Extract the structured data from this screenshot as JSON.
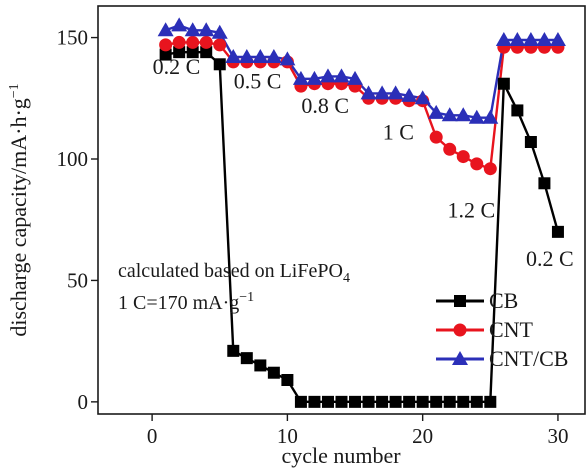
{
  "chart_data": {
    "type": "scatter",
    "xlabel": "cycle number",
    "ylabel": "discharge capacity/mA·h·g",
    "ylabel_sup": "−1",
    "xlim": [
      -4,
      32
    ],
    "ylim": [
      -5,
      163
    ],
    "xticks": [
      0,
      10,
      20,
      30
    ],
    "yticks": [
      0,
      50,
      100,
      150
    ],
    "grid": false,
    "legend_position": "bottom-right",
    "series": [
      {
        "name": "CB",
        "color": "#000000",
        "marker": "square",
        "x": [
          1,
          2,
          3,
          4,
          5,
          6,
          7,
          8,
          9,
          10,
          11,
          12,
          13,
          14,
          15,
          16,
          17,
          18,
          19,
          20,
          21,
          22,
          23,
          24,
          25,
          26,
          27,
          28,
          29,
          30
        ],
        "y": [
          143,
          144,
          144,
          144,
          139,
          21,
          18,
          15,
          12,
          9,
          0,
          0,
          0,
          0,
          0,
          0,
          0,
          0,
          0,
          0,
          0,
          0,
          0,
          0,
          0,
          131,
          120,
          107,
          90,
          70
        ]
      },
      {
        "name": "CNT",
        "color": "#e8141e",
        "marker": "circle",
        "x": [
          1,
          2,
          3,
          4,
          5,
          6,
          7,
          8,
          9,
          10,
          11,
          12,
          13,
          14,
          15,
          16,
          17,
          18,
          19,
          20,
          21,
          22,
          23,
          24,
          25,
          26,
          27,
          28,
          29,
          30
        ],
        "y": [
          147,
          148,
          148,
          148,
          147,
          140,
          140,
          140,
          140,
          140,
          130,
          131,
          131,
          131,
          130,
          125,
          125,
          125,
          124,
          124,
          109,
          104,
          101,
          98,
          96,
          146,
          146,
          146,
          146,
          146
        ]
      },
      {
        "name": "CNT/CB",
        "color": "#2b2fb8",
        "marker": "triangle",
        "x": [
          1,
          2,
          3,
          4,
          5,
          6,
          7,
          8,
          9,
          10,
          11,
          12,
          13,
          14,
          15,
          16,
          17,
          18,
          19,
          20,
          21,
          22,
          23,
          24,
          25,
          26,
          27,
          28,
          29,
          30
        ],
        "y": [
          153,
          155,
          153,
          153,
          152,
          142,
          142,
          142,
          142,
          141,
          133,
          133,
          134,
          134,
          133,
          127,
          127,
          127,
          126,
          125,
          119,
          118,
          118,
          117,
          117,
          149,
          149,
          149,
          149,
          149
        ]
      }
    ],
    "annotations": [
      {
        "text": "0.2 C",
        "x": 1.8,
        "y": 135
      },
      {
        "text": "0.5 C",
        "x": 7.8,
        "y": 129
      },
      {
        "text": "0.8 C",
        "x": 12.8,
        "y": 119
      },
      {
        "text": "1 C",
        "x": 18.2,
        "y": 108
      },
      {
        "text": "1.2 C",
        "x": 23.6,
        "y": 76
      },
      {
        "text": "0.2 C",
        "x": 29.4,
        "y": 56
      }
    ],
    "notes": {
      "line1_main": "calculated based on LiFePO",
      "line1_sub": "4",
      "line2_main": "1 C=170 mA·g",
      "line2_sup": "−1"
    }
  }
}
